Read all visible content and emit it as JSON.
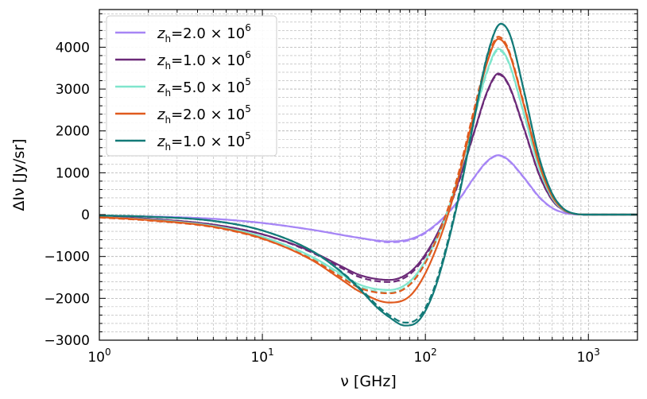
{
  "chart_data": {
    "type": "line",
    "xlabel": "ν [GHz]",
    "ylabel": "ΔIν [Jy/sr]",
    "xscale": "log",
    "xlim": [
      1,
      2000
    ],
    "ylim": [
      -3000,
      4900
    ],
    "x_ticks": [
      {
        "base": "10",
        "exp": "0"
      },
      {
        "base": "10",
        "exp": "1"
      },
      {
        "base": "10",
        "exp": "2"
      },
      {
        "base": "10",
        "exp": "3"
      }
    ],
    "y_ticks": [
      "−3000",
      "−2000",
      "−1000",
      "0",
      "1000",
      "2000",
      "3000",
      "4000"
    ],
    "grid": true,
    "legend_position": "top-left",
    "series": [
      {
        "name": "zh=2.0×10^6",
        "legend": {
          "prefix": "z",
          "sub": "h",
          "mid": "=2.0 × 10",
          "sup": "6"
        },
        "color": "#a685f5",
        "amplitude": 0.31,
        "points": [
          [
            1,
            -30
          ],
          [
            2,
            -45
          ],
          [
            5,
            -100
          ],
          [
            10,
            -200
          ],
          [
            20,
            -360
          ],
          [
            40,
            -560
          ],
          [
            60,
            -640
          ],
          [
            80,
            -590
          ],
          [
            100,
            -420
          ],
          [
            130,
            -60
          ],
          [
            160,
            350
          ],
          [
            200,
            900
          ],
          [
            240,
            1280
          ],
          [
            280,
            1420
          ],
          [
            320,
            1320
          ],
          [
            400,
            900
          ],
          [
            500,
            420
          ],
          [
            600,
            160
          ],
          [
            700,
            50
          ],
          [
            800,
            12
          ],
          [
            1000,
            0
          ],
          [
            2000,
            0
          ]
        ],
        "dashed_points": [
          [
            1,
            -30
          ],
          [
            2,
            -45
          ],
          [
            5,
            -100
          ],
          [
            10,
            -200
          ],
          [
            20,
            -360
          ],
          [
            40,
            -560
          ],
          [
            60,
            -660
          ],
          [
            80,
            -610
          ],
          [
            100,
            -440
          ],
          [
            130,
            -70
          ],
          [
            160,
            340
          ],
          [
            200,
            890
          ],
          [
            240,
            1270
          ],
          [
            280,
            1410
          ],
          [
            320,
            1310
          ],
          [
            400,
            890
          ],
          [
            500,
            410
          ],
          [
            600,
            155
          ],
          [
            700,
            48
          ],
          [
            800,
            11
          ],
          [
            1000,
            0
          ],
          [
            2000,
            0
          ]
        ]
      },
      {
        "name": "zh=1.0×10^6",
        "legend": {
          "prefix": "z",
          "sub": "h",
          "mid": "=1.0 × 10",
          "sup": "6"
        },
        "color": "#6b2a78",
        "amplitude": 0.74,
        "points": [
          [
            1,
            -50
          ],
          [
            2,
            -100
          ],
          [
            5,
            -240
          ],
          [
            10,
            -470
          ],
          [
            20,
            -880
          ],
          [
            30,
            -1220
          ],
          [
            40,
            -1450
          ],
          [
            60,
            -1560
          ],
          [
            80,
            -1380
          ],
          [
            100,
            -950
          ],
          [
            130,
            -120
          ],
          [
            160,
            800
          ],
          [
            200,
            2000
          ],
          [
            240,
            2950
          ],
          [
            280,
            3370
          ],
          [
            320,
            3150
          ],
          [
            400,
            2100
          ],
          [
            500,
            950
          ],
          [
            600,
            350
          ],
          [
            700,
            110
          ],
          [
            800,
            25
          ],
          [
            1000,
            0
          ],
          [
            2000,
            0
          ]
        ],
        "dashed_points": [
          [
            1,
            -50
          ],
          [
            2,
            -100
          ],
          [
            5,
            -240
          ],
          [
            10,
            -470
          ],
          [
            20,
            -900
          ],
          [
            30,
            -1260
          ],
          [
            40,
            -1500
          ],
          [
            60,
            -1610
          ],
          [
            80,
            -1430
          ],
          [
            100,
            -990
          ],
          [
            130,
            -150
          ],
          [
            160,
            770
          ],
          [
            200,
            1980
          ],
          [
            240,
            2930
          ],
          [
            280,
            3350
          ],
          [
            320,
            3130
          ],
          [
            400,
            2080
          ],
          [
            500,
            940
          ],
          [
            600,
            345
          ],
          [
            700,
            108
          ],
          [
            800,
            24
          ],
          [
            1000,
            0
          ],
          [
            2000,
            0
          ]
        ]
      },
      {
        "name": "zh=5.0×10^5",
        "legend": {
          "prefix": "z",
          "sub": "h",
          "mid": "=5.0 × 10",
          "sup": "5"
        },
        "color": "#7fe5cc",
        "amplitude": 0.87,
        "points": [
          [
            1,
            -60
          ],
          [
            2,
            -120
          ],
          [
            5,
            -270
          ],
          [
            10,
            -530
          ],
          [
            20,
            -1000
          ],
          [
            30,
            -1400
          ],
          [
            40,
            -1680
          ],
          [
            60,
            -1800
          ],
          [
            80,
            -1600
          ],
          [
            100,
            -1100
          ],
          [
            130,
            -150
          ],
          [
            160,
            920
          ],
          [
            200,
            2350
          ],
          [
            240,
            3450
          ],
          [
            280,
            3960
          ],
          [
            320,
            3700
          ],
          [
            400,
            2450
          ],
          [
            500,
            1100
          ],
          [
            600,
            400
          ],
          [
            700,
            120
          ],
          [
            800,
            28
          ],
          [
            1000,
            0
          ],
          [
            2000,
            0
          ]
        ],
        "dashed_points": [
          [
            1,
            -60
          ],
          [
            2,
            -120
          ],
          [
            5,
            -270
          ],
          [
            10,
            -530
          ],
          [
            20,
            -1020
          ],
          [
            30,
            -1440
          ],
          [
            40,
            -1730
          ],
          [
            60,
            -1860
          ],
          [
            80,
            -1660
          ],
          [
            100,
            -1150
          ],
          [
            130,
            -180
          ],
          [
            160,
            890
          ],
          [
            200,
            2320
          ],
          [
            240,
            3420
          ],
          [
            280,
            3930
          ],
          [
            320,
            3680
          ],
          [
            400,
            2430
          ],
          [
            500,
            1090
          ],
          [
            600,
            395
          ],
          [
            700,
            118
          ],
          [
            800,
            27
          ],
          [
            1000,
            0
          ],
          [
            2000,
            0
          ]
        ]
      },
      {
        "name": "zh=2.0×10^5",
        "legend": {
          "prefix": "z",
          "sub": "h",
          "mid": "=2.0 × 10",
          "sup": "5"
        },
        "color": "#e05a1e",
        "amplitude": 0.93,
        "points": [
          [
            1,
            -60
          ],
          [
            2,
            -130
          ],
          [
            5,
            -290
          ],
          [
            10,
            -570
          ],
          [
            20,
            -1080
          ],
          [
            30,
            -1530
          ],
          [
            40,
            -1850
          ],
          [
            60,
            -2100
          ],
          [
            80,
            -1950
          ],
          [
            100,
            -1400
          ],
          [
            130,
            -300
          ],
          [
            160,
            900
          ],
          [
            200,
            2450
          ],
          [
            240,
            3650
          ],
          [
            280,
            4200
          ],
          [
            320,
            3950
          ],
          [
            400,
            2650
          ],
          [
            500,
            1200
          ],
          [
            600,
            440
          ],
          [
            700,
            130
          ],
          [
            800,
            30
          ],
          [
            1000,
            0
          ],
          [
            2000,
            0
          ]
        ],
        "dashed_points": [
          [
            1,
            -70
          ],
          [
            2,
            -140
          ],
          [
            5,
            -300
          ],
          [
            10,
            -580
          ],
          [
            20,
            -1060
          ],
          [
            30,
            -1480
          ],
          [
            40,
            -1760
          ],
          [
            60,
            -1880
          ],
          [
            80,
            -1680
          ],
          [
            100,
            -1150
          ],
          [
            130,
            -130
          ],
          [
            160,
            1000
          ],
          [
            200,
            2550
          ],
          [
            240,
            3720
          ],
          [
            280,
            4250
          ],
          [
            320,
            3990
          ],
          [
            400,
            2680
          ],
          [
            500,
            1210
          ],
          [
            600,
            445
          ],
          [
            700,
            132
          ],
          [
            800,
            30
          ],
          [
            1000,
            0
          ],
          [
            2000,
            0
          ]
        ]
      },
      {
        "name": "zh=1.0×10^5",
        "legend": {
          "prefix": "z",
          "sub": "h",
          "mid": "=1.0 × 10",
          "sup": "5"
        },
        "color": "#137a78",
        "amplitude": 1.0,
        "points": [
          [
            1,
            -20
          ],
          [
            2,
            -50
          ],
          [
            5,
            -150
          ],
          [
            10,
            -380
          ],
          [
            20,
            -860
          ],
          [
            30,
            -1350
          ],
          [
            40,
            -1800
          ],
          [
            50,
            -2200
          ],
          [
            60,
            -2450
          ],
          [
            75,
            -2650
          ],
          [
            90,
            -2550
          ],
          [
            110,
            -1950
          ],
          [
            130,
            -1050
          ],
          [
            160,
            400
          ],
          [
            200,
            2300
          ],
          [
            240,
            3800
          ],
          [
            290,
            4560
          ],
          [
            330,
            4300
          ],
          [
            400,
            3000
          ],
          [
            500,
            1350
          ],
          [
            600,
            500
          ],
          [
            700,
            150
          ],
          [
            800,
            35
          ],
          [
            1000,
            0
          ],
          [
            2000,
            0
          ]
        ],
        "dashed_points": [
          [
            1,
            -20
          ],
          [
            2,
            -50
          ],
          [
            5,
            -150
          ],
          [
            10,
            -380
          ],
          [
            20,
            -860
          ],
          [
            30,
            -1340
          ],
          [
            40,
            -1770
          ],
          [
            50,
            -2150
          ],
          [
            60,
            -2400
          ],
          [
            75,
            -2580
          ],
          [
            90,
            -2480
          ],
          [
            110,
            -1880
          ],
          [
            130,
            -980
          ],
          [
            160,
            460
          ],
          [
            200,
            2340
          ],
          [
            240,
            3820
          ],
          [
            290,
            4560
          ],
          [
            330,
            4300
          ],
          [
            400,
            3000
          ],
          [
            500,
            1350
          ],
          [
            600,
            500
          ],
          [
            700,
            150
          ],
          [
            800,
            35
          ],
          [
            1000,
            0
          ],
          [
            2000,
            0
          ]
        ]
      }
    ]
  }
}
